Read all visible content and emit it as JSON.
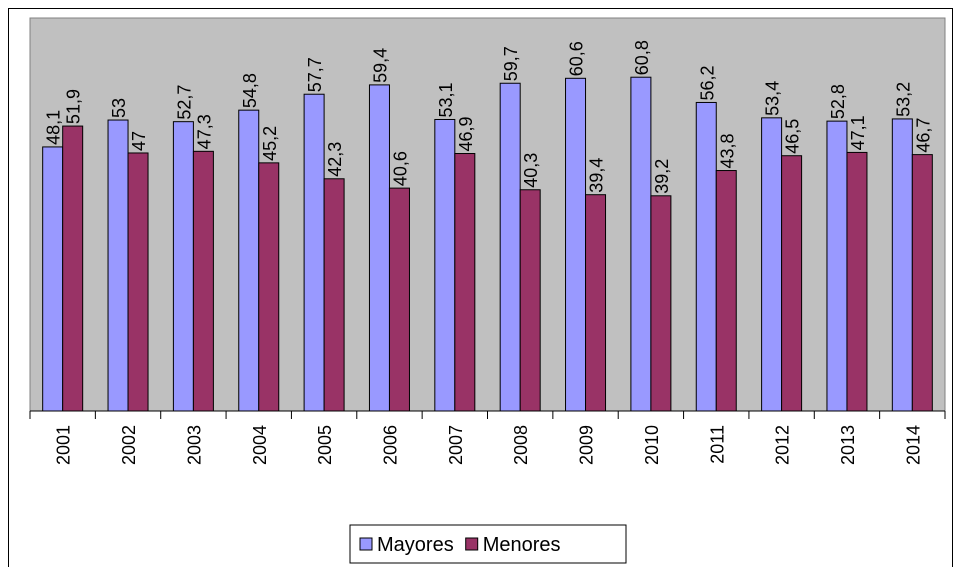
{
  "chart_data": {
    "type": "bar",
    "categories": [
      "2001",
      "2002",
      "2003",
      "2004",
      "2005",
      "2006",
      "2007",
      "2008",
      "2009",
      "2010",
      "2011",
      "2012",
      "2013",
      "2014"
    ],
    "series": [
      {
        "name": "Mayores",
        "color": "#9999ff",
        "values": [
          48.1,
          53,
          52.7,
          54.8,
          57.7,
          59.4,
          53.1,
          59.7,
          60.6,
          60.8,
          56.2,
          53.4,
          52.8,
          53.2
        ],
        "value_labels": [
          "48,1",
          "53",
          "52,7",
          "54,8",
          "57,7",
          "59,4",
          "53,1",
          "59,7",
          "60,6",
          "60,8",
          "56,2",
          "53,4",
          "52,8",
          "53,2"
        ]
      },
      {
        "name": "Menores",
        "color": "#993366",
        "values": [
          51.9,
          47,
          47.3,
          45.2,
          42.3,
          40.6,
          46.9,
          40.3,
          39.4,
          39.2,
          43.8,
          46.5,
          47.1,
          46.7
        ],
        "value_labels": [
          "51,9",
          "47",
          "47,3",
          "45,2",
          "42,3",
          "40,6",
          "46,9",
          "40,3",
          "39,4",
          "39,2",
          "43,8",
          "46,5",
          "47,1",
          "46,7"
        ]
      }
    ],
    "legend": "bottom"
  }
}
